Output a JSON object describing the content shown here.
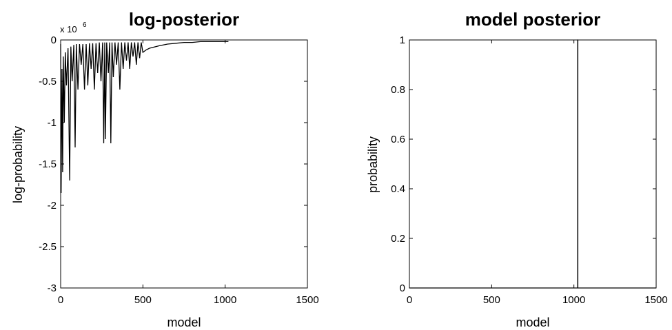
{
  "chart_data": [
    {
      "type": "line",
      "title": "log-posterior",
      "xlabel": "model",
      "ylabel": "log-probability",
      "xlim": [
        0,
        1500
      ],
      "ylim": [
        -3,
        0
      ],
      "xticks": [
        "0",
        "500",
        "1000",
        "1500"
      ],
      "yticks": [
        "-3",
        "-2.5",
        "-2",
        "-1.5",
        "-1",
        "-0.5",
        "0"
      ],
      "y_multiplier": "x 10",
      "y_multiplier_exp": "6",
      "line_color": "#000000",
      "series": [
        {
          "x": [
            0,
            3,
            8,
            12,
            16,
            22,
            28,
            35,
            45,
            55,
            62,
            70,
            80,
            88,
            95,
            105,
            115,
            125,
            135,
            145,
            155,
            165,
            175,
            185,
            195,
            205,
            215,
            225,
            235,
            245,
            255,
            262,
            268,
            272,
            280,
            290,
            298,
            305,
            312,
            320,
            330,
            340,
            350,
            360,
            370,
            380,
            390,
            400,
            410,
            420,
            430,
            440,
            450,
            460,
            470,
            480,
            490,
            500,
            520,
            540,
            560,
            580,
            600,
            650,
            700,
            750,
            800,
            850,
            900,
            950,
            1000,
            1020
          ],
          "y": [
            -0.05,
            -1.85,
            -0.35,
            -1.6,
            -0.2,
            -1.0,
            -0.15,
            -0.55,
            -0.1,
            -1.7,
            -0.08,
            -0.5,
            -0.06,
            -1.3,
            -0.05,
            -0.6,
            -0.05,
            -0.3,
            -0.05,
            -0.6,
            -0.05,
            -0.55,
            -0.04,
            -0.35,
            -0.04,
            -0.6,
            -0.04,
            -0.4,
            -0.03,
            -0.5,
            -0.03,
            -1.25,
            -0.03,
            -1.2,
            -0.03,
            -0.4,
            -0.03,
            -1.25,
            -0.03,
            -0.45,
            -0.03,
            -0.3,
            -0.03,
            -0.6,
            -0.03,
            -0.35,
            -0.03,
            -0.25,
            -0.03,
            -0.35,
            -0.03,
            -0.2,
            -0.03,
            -0.3,
            -0.03,
            -0.22,
            -0.03,
            -0.15,
            -0.12,
            -0.1,
            -0.09,
            -0.08,
            -0.07,
            -0.05,
            -0.04,
            -0.03,
            -0.03,
            -0.02,
            -0.02,
            -0.02,
            -0.02,
            -0.02
          ]
        }
      ]
    },
    {
      "type": "line",
      "title": "model posterior",
      "xlabel": "model",
      "ylabel": "probability",
      "xlim": [
        0,
        1500
      ],
      "ylim": [
        0,
        1
      ],
      "xticks": [
        "0",
        "500",
        "1000",
        "1500"
      ],
      "yticks": [
        "0",
        "0.2",
        "0.4",
        "0.6",
        "0.8",
        "1"
      ],
      "line_color": "#000000",
      "series": [
        {
          "x": [
            0,
            1023,
            1023,
            1024,
            1024,
            1500
          ],
          "y": [
            0,
            0,
            1,
            1,
            0,
            0
          ]
        }
      ]
    }
  ]
}
